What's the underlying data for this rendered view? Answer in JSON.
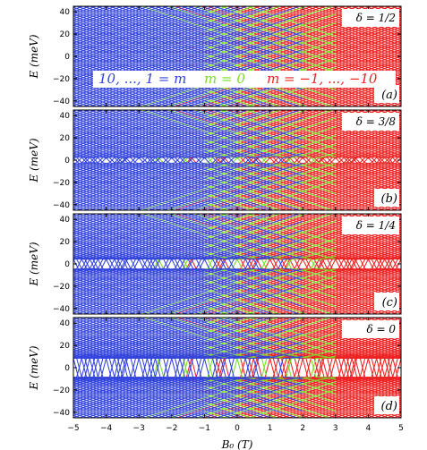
{
  "chart_data": [
    {
      "type": "line",
      "panel": "(a)",
      "delta": "δ = 1/2",
      "ylabel": "E (meV)",
      "xlim": [
        -5,
        5
      ],
      "ylim": [
        -45,
        45
      ],
      "yticks": [
        "40",
        "20",
        "0",
        "−20",
        "−40"
      ],
      "annotations": [
        {
          "text": "10, ..., 1 = m",
          "color": "#3344dd"
        },
        {
          "text": "m = 0",
          "color": "#77dd22"
        },
        {
          "text": "m = −1, ..., −10",
          "color": "#ee2222"
        }
      ],
      "colors": {
        "m_positive": "#3344dd",
        "m_zero": "#77dd22",
        "m_negative": "#ee2222"
      }
    },
    {
      "type": "line",
      "panel": "(b)",
      "delta": "δ = 3/8",
      "ylabel": "E (meV)",
      "xlim": [
        -5,
        5
      ],
      "ylim": [
        -45,
        45
      ],
      "yticks": [
        "40",
        "20",
        "0",
        "−20",
        "−40"
      ]
    },
    {
      "type": "line",
      "panel": "(c)",
      "delta": "δ = 1/4",
      "ylabel": "E (meV)",
      "xlim": [
        -5,
        5
      ],
      "ylim": [
        -45,
        45
      ],
      "yticks": [
        "40",
        "20",
        "0",
        "−20",
        "−40"
      ]
    },
    {
      "type": "line",
      "panel": "(d)",
      "delta": "δ = 0",
      "ylabel": "E (meV)",
      "xlabel": "B₀ (T)",
      "xlim": [
        -5,
        5
      ],
      "ylim": [
        -45,
        45
      ],
      "yticks": [
        "40",
        "20",
        "0",
        "−20",
        "−40"
      ],
      "xticks": [
        "−5",
        "−4",
        "−3",
        "−2",
        "−1",
        "0",
        "1",
        "2",
        "3",
        "4",
        "5"
      ]
    }
  ]
}
